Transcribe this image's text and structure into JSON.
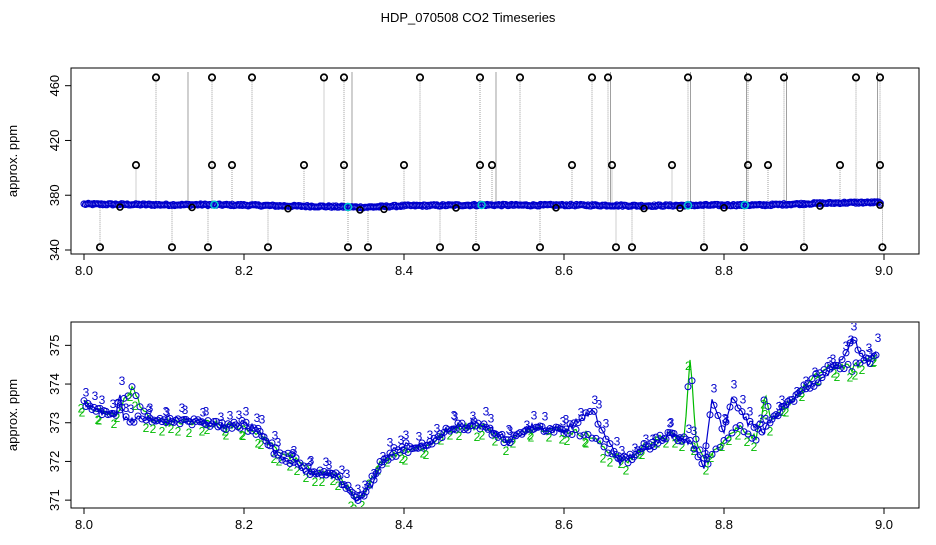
{
  "title": "HDP_070508  CO2 Timeseries",
  "colors": {
    "raw": "#888888",
    "outlier": "#000000",
    "cyan": "#00cccc",
    "series2": "#00bb00",
    "series3": "#0000cc"
  },
  "chart_data": [
    {
      "type": "scatter",
      "ylabel": "approx. ppm",
      "xlim": [
        8.0,
        9.0
      ],
      "ylim": [
        340,
        470
      ],
      "xticks": [
        "8.0",
        "8.2",
        "8.4",
        "8.6",
        "8.8",
        "9.0"
      ],
      "yticks": [
        "340",
        "380",
        "420",
        "460"
      ],
      "outliers_high": [
        8.09,
        8.16,
        8.21,
        8.3,
        8.325,
        8.42,
        8.495,
        8.545,
        8.635,
        8.655,
        8.755,
        8.83,
        8.875,
        8.965,
        8.995
      ],
      "outliers_mid": [
        8.065,
        8.16,
        8.185,
        8.275,
        8.325,
        8.4,
        8.495,
        8.51,
        8.61,
        8.66,
        8.735,
        8.83,
        8.855,
        8.945,
        8.995
      ],
      "outliers_low": [
        8.02,
        8.11,
        8.155,
        8.23,
        8.33,
        8.355,
        8.445,
        8.49,
        8.57,
        8.665,
        8.685,
        8.775,
        8.825,
        8.9,
        8.998
      ],
      "baseline": [
        [
          8.0,
          373.5
        ],
        [
          8.05,
          373.3
        ],
        [
          8.1,
          373.0
        ],
        [
          8.15,
          373.1
        ],
        [
          8.2,
          372.8
        ],
        [
          8.25,
          372.2
        ],
        [
          8.3,
          371.8
        ],
        [
          8.35,
          371.2
        ],
        [
          8.4,
          372.3
        ],
        [
          8.45,
          372.6
        ],
        [
          8.5,
          372.9
        ],
        [
          8.55,
          372.7
        ],
        [
          8.6,
          372.8
        ],
        [
          8.65,
          372.6
        ],
        [
          8.7,
          372.3
        ],
        [
          8.75,
          372.6
        ],
        [
          8.8,
          372.8
        ],
        [
          8.85,
          372.8
        ],
        [
          8.9,
          373.8
        ],
        [
          8.95,
          374.5
        ],
        [
          9.0,
          374.8
        ]
      ]
    },
    {
      "type": "line",
      "ylabel": "approx. ppm",
      "xlim": [
        8.0,
        9.0
      ],
      "ylim": [
        370.9,
        375.5
      ],
      "xticks": [
        "8.0",
        "8.2",
        "8.4",
        "8.6",
        "8.8",
        "9.0"
      ],
      "yticks": [
        "371",
        "372",
        "373",
        "374",
        "375"
      ],
      "series": [
        {
          "marker": "2",
          "values": [
            [
              8.0,
              373.5
            ],
            [
              8.02,
              373.3
            ],
            [
              8.04,
              373.2
            ],
            [
              8.06,
              373.9
            ],
            [
              8.08,
              373.1
            ],
            [
              8.1,
              373.0
            ],
            [
              8.12,
              373.0
            ],
            [
              8.15,
              373.0
            ],
            [
              8.18,
              372.9
            ],
            [
              8.2,
              372.9
            ],
            [
              8.22,
              372.7
            ],
            [
              8.24,
              372.3
            ],
            [
              8.26,
              372.1
            ],
            [
              8.28,
              371.8
            ],
            [
              8.3,
              371.7
            ],
            [
              8.32,
              371.6
            ],
            [
              8.34,
              371.0
            ],
            [
              8.35,
              371.1
            ],
            [
              8.37,
              372.0
            ],
            [
              8.4,
              372.3
            ],
            [
              8.43,
              372.4
            ],
            [
              8.46,
              372.9
            ],
            [
              8.5,
              372.9
            ],
            [
              8.53,
              372.5
            ],
            [
              8.56,
              372.9
            ],
            [
              8.6,
              372.8
            ],
            [
              8.63,
              372.7
            ],
            [
              8.66,
              372.2
            ],
            [
              8.68,
              372.0
            ],
            [
              8.7,
              372.4
            ],
            [
              8.73,
              372.7
            ],
            [
              8.75,
              372.6
            ],
            [
              8.758,
              374.7
            ],
            [
              8.765,
              372.5
            ],
            [
              8.78,
              372.0
            ],
            [
              8.8,
              372.6
            ],
            [
              8.82,
              372.9
            ],
            [
              8.84,
              372.6
            ],
            [
              8.852,
              373.7
            ],
            [
              8.86,
              373.0
            ],
            [
              8.88,
              373.5
            ],
            [
              8.9,
              373.9
            ],
            [
              8.92,
              374.3
            ],
            [
              8.94,
              374.5
            ],
            [
              8.96,
              374.4
            ],
            [
              8.975,
              374.6
            ],
            [
              8.99,
              374.8
            ]
          ]
        },
        {
          "marker": "3",
          "values": [
            [
              8.0,
              373.5
            ],
            [
              8.02,
              373.3
            ],
            [
              8.04,
              373.2
            ],
            [
              8.045,
              373.8
            ],
            [
              8.05,
              373.1
            ],
            [
              8.08,
              373.1
            ],
            [
              8.1,
              373.0
            ],
            [
              8.12,
              373.1
            ],
            [
              8.15,
              373.0
            ],
            [
              8.18,
              372.9
            ],
            [
              8.2,
              373.0
            ],
            [
              8.22,
              372.8
            ],
            [
              8.24,
              372.2
            ],
            [
              8.26,
              372.0
            ],
            [
              8.28,
              371.7
            ],
            [
              8.3,
              371.7
            ],
            [
              8.32,
              371.5
            ],
            [
              8.34,
              371.0
            ],
            [
              8.36,
              371.4
            ],
            [
              8.38,
              372.2
            ],
            [
              8.4,
              372.4
            ],
            [
              8.43,
              372.4
            ],
            [
              8.46,
              372.9
            ],
            [
              8.5,
              373.0
            ],
            [
              8.53,
              372.5
            ],
            [
              8.56,
              372.9
            ],
            [
              8.6,
              372.8
            ],
            [
              8.636,
              373.3
            ],
            [
              8.65,
              372.7
            ],
            [
              8.67,
              372.0
            ],
            [
              8.7,
              372.3
            ],
            [
              8.73,
              372.7
            ],
            [
              8.76,
              372.5
            ],
            [
              8.775,
              371.9
            ],
            [
              8.785,
              373.6
            ],
            [
              8.8,
              372.8
            ],
            [
              8.81,
              373.7
            ],
            [
              8.83,
              373.0
            ],
            [
              8.85,
              372.8
            ],
            [
              8.87,
              373.3
            ],
            [
              8.9,
              373.8
            ],
            [
              8.93,
              374.3
            ],
            [
              8.95,
              374.7
            ],
            [
              8.96,
              375.2
            ],
            [
              8.98,
              374.5
            ],
            [
              8.99,
              374.9
            ]
          ]
        }
      ]
    }
  ]
}
